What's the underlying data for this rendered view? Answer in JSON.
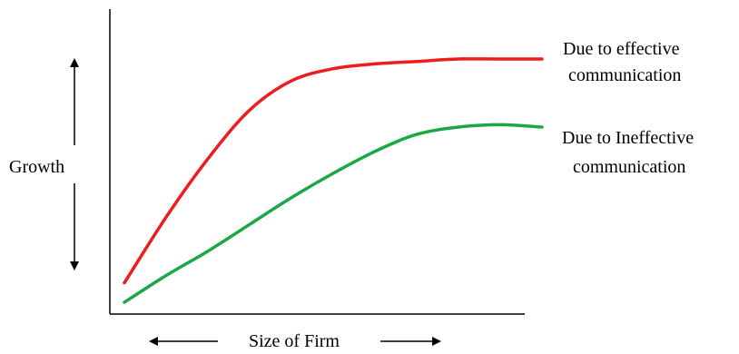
{
  "chart_data": {
    "type": "line",
    "xlabel": "Size of Firm",
    "ylabel": "Growth",
    "grid": false,
    "x": [
      0,
      0.1,
      0.2,
      0.3,
      0.4,
      0.5,
      0.6,
      0.7,
      0.8,
      0.9,
      1.0
    ],
    "series": [
      {
        "name": "Due to effective communication",
        "color": "#ee1c1c",
        "values": [
          0.08,
          0.35,
          0.59,
          0.79,
          0.91,
          0.96,
          0.98,
          0.99,
          1.0,
          1.0,
          1.0
        ]
      },
      {
        "name": "Due to Ineffective communication",
        "color": "#1aa845",
        "values": [
          0.0,
          0.11,
          0.21,
          0.32,
          0.43,
          0.53,
          0.62,
          0.69,
          0.72,
          0.73,
          0.72
        ]
      }
    ],
    "legend_lines": [
      [
        "Due to effective",
        "communication"
      ],
      [
        "Due to Ineffective",
        "communication"
      ]
    ]
  }
}
